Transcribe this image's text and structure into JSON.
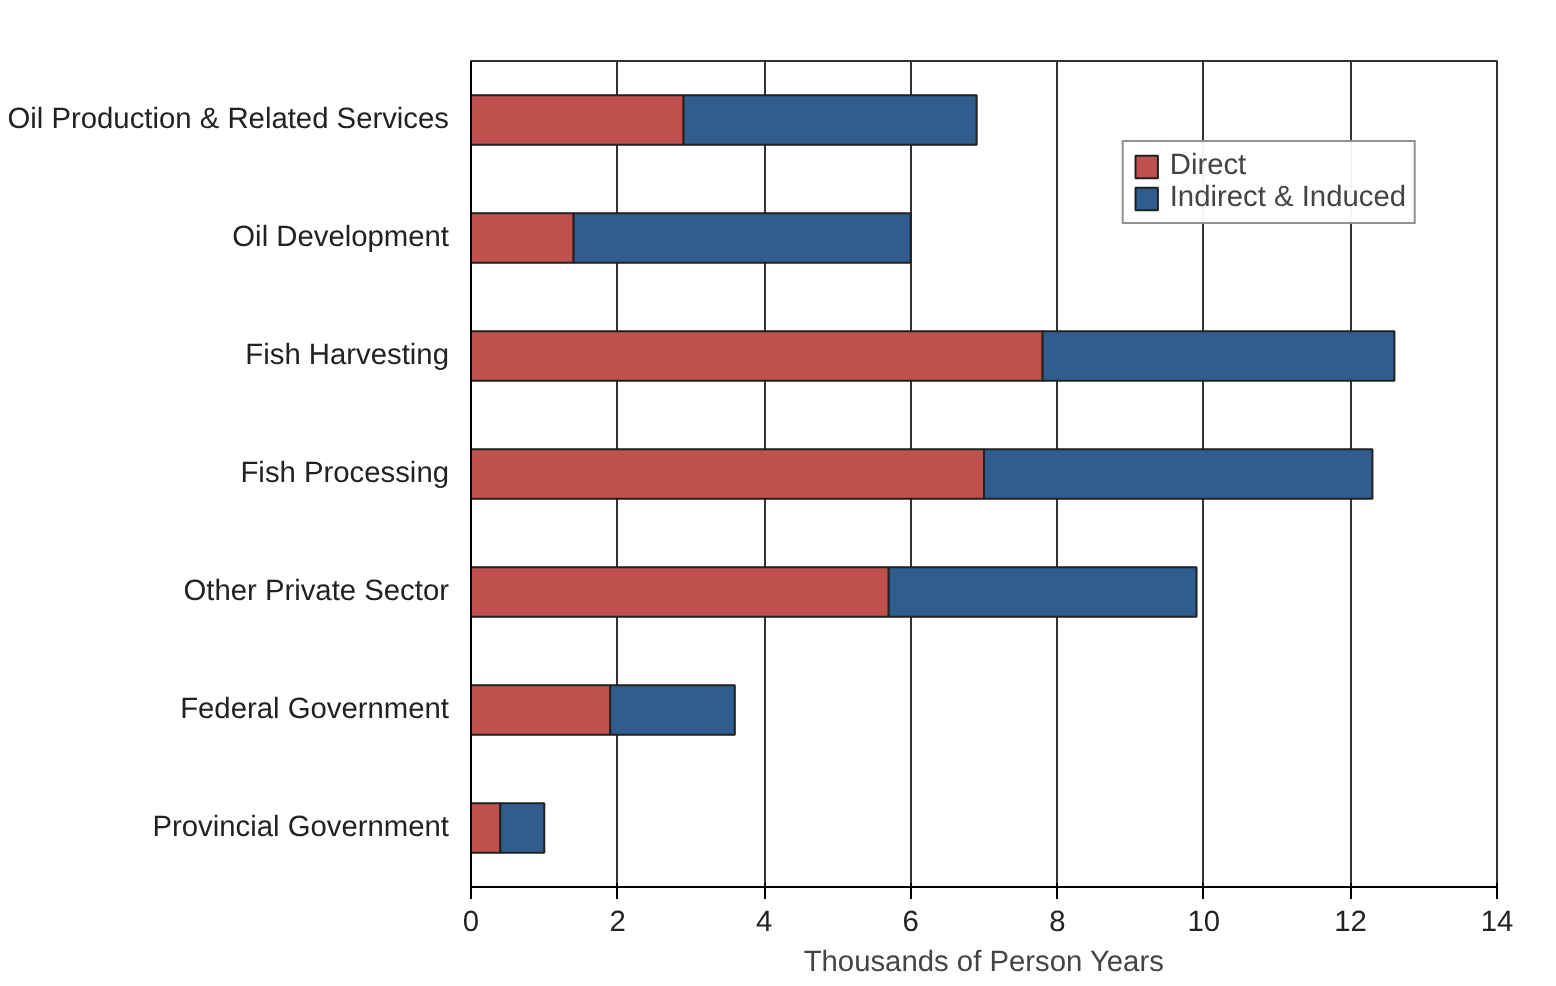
{
  "chart_data": {
    "type": "bar",
    "orientation": "horizontal",
    "stacked": true,
    "categories": [
      "Oil Production & Related Services",
      "Oil Development",
      "Fish Harvesting",
      "Fish Processing",
      "Other Private Sector",
      "Federal Government",
      "Provincial Government"
    ],
    "series": [
      {
        "name": "Direct",
        "color": "#c0504d",
        "values": [
          2.9,
          1.4,
          7.8,
          7.0,
          5.7,
          1.9,
          0.4
        ]
      },
      {
        "name": "Indirect & Induced",
        "color": "#2e5d8e",
        "values": [
          4.0,
          4.6,
          4.8,
          5.3,
          4.2,
          1.7,
          0.6
        ]
      }
    ],
    "xlim": [
      0,
      14
    ],
    "xticks": [
      0,
      2,
      4,
      6,
      8,
      10,
      12,
      14
    ],
    "xlabel": "Thousands of Person Years",
    "grid": "x",
    "legend": "top right"
  }
}
